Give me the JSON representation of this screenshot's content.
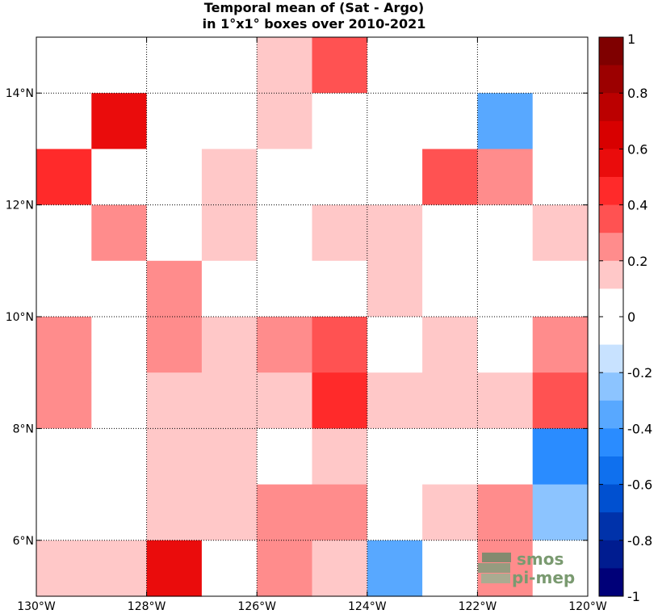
{
  "chart_data": {
    "type": "heatmap",
    "title_lines": [
      "Temporal mean of (Sat - Argo)",
      "in 1°x1° boxes over 2010-2021"
    ],
    "x_ticks": [
      {
        "value": -130,
        "label": "130°W"
      },
      {
        "value": -128,
        "label": "128°W"
      },
      {
        "value": -126,
        "label": "126°W"
      },
      {
        "value": -124,
        "label": "124°W"
      },
      {
        "value": -122,
        "label": "122°W"
      },
      {
        "value": -120,
        "label": "120°W"
      }
    ],
    "y_ticks": [
      {
        "value": 6,
        "label": "6°N"
      },
      {
        "value": 8,
        "label": "8°N"
      },
      {
        "value": 10,
        "label": "10°N"
      },
      {
        "value": 12,
        "label": "12°N"
      },
      {
        "value": 14,
        "label": "14°N"
      }
    ],
    "xlim": [
      -130,
      -120
    ],
    "ylim": [
      5,
      15
    ],
    "grid": true,
    "x_lon_west_edges": [
      -130,
      -129,
      -128,
      -127,
      -126,
      -125,
      -124,
      -123,
      -122,
      -121
    ],
    "y_lat_top_edges": [
      15,
      14,
      13,
      12,
      11,
      10,
      9,
      8,
      7,
      6
    ],
    "values": [
      [
        0,
        0,
        -0.1,
        0,
        0.15,
        0.35,
        -0.1,
        -0.1,
        0,
        0
      ],
      [
        0,
        0.55,
        0,
        0,
        0.15,
        0,
        0,
        0,
        -0.35,
        0
      ],
      [
        0.45,
        -0.1,
        -0.1,
        0.15,
        -0.1,
        0,
        0,
        0.35,
        0.25,
        0
      ],
      [
        0,
        0.25,
        0,
        0.15,
        0,
        0.15,
        0.15,
        0,
        0,
        0.15
      ],
      [
        0,
        0,
        0.25,
        0,
        0,
        0,
        0.15,
        0,
        0,
        0
      ],
      [
        0.25,
        0,
        0.25,
        0.15,
        0.25,
        0.35,
        0,
        0.15,
        0,
        0.25
      ],
      [
        0.25,
        0,
        0.15,
        0.15,
        0.15,
        0.45,
        0.15,
        0.15,
        0.15,
        0.35
      ],
      [
        0,
        0,
        0.15,
        0.15,
        0,
        0.15,
        0,
        0,
        0,
        -0.45
      ],
      [
        -0.1,
        -0.1,
        0.15,
        0.15,
        0.25,
        0.25,
        0,
        0.15,
        0.25,
        -0.25
      ],
      [
        0.15,
        0.15,
        0.55,
        0,
        0.25,
        0.15,
        -0.35,
        0,
        0.25,
        0
      ]
    ],
    "colorbar": {
      "min": -1,
      "max": 1,
      "ticks": [
        {
          "value": 1,
          "label": "1"
        },
        {
          "value": 0.8,
          "label": "0.8"
        },
        {
          "value": 0.6,
          "label": "0.6"
        },
        {
          "value": 0.4,
          "label": "0.4"
        },
        {
          "value": 0.2,
          "label": "0.2"
        },
        {
          "value": 0,
          "label": "0"
        },
        {
          "value": -0.2,
          "label": "-0.2"
        },
        {
          "value": -0.4,
          "label": "-0.4"
        },
        {
          "value": -0.6,
          "label": "-0.6"
        },
        {
          "value": -0.8,
          "label": "-0.8"
        },
        {
          "value": -1,
          "label": "-1"
        }
      ],
      "levels": [
        {
          "from": 0.9,
          "to": 1.0,
          "color": "#7f0000"
        },
        {
          "from": 0.8,
          "to": 0.9,
          "color": "#9c0000"
        },
        {
          "from": 0.7,
          "to": 0.8,
          "color": "#bb0000"
        },
        {
          "from": 0.6,
          "to": 0.7,
          "color": "#d80000"
        },
        {
          "from": 0.5,
          "to": 0.6,
          "color": "#ea0c0c"
        },
        {
          "from": 0.4,
          "to": 0.5,
          "color": "#ff2a2a"
        },
        {
          "from": 0.3,
          "to": 0.4,
          "color": "#ff5252"
        },
        {
          "from": 0.2,
          "to": 0.3,
          "color": "#ff8c8c"
        },
        {
          "from": 0.1,
          "to": 0.2,
          "color": "#ffc8c8"
        },
        {
          "from": -0.1,
          "to": 0.1,
          "color": "#ffffff"
        },
        {
          "from": -0.2,
          "to": -0.1,
          "color": "#c8e2ff"
        },
        {
          "from": -0.3,
          "to": -0.2,
          "color": "#8cc4ff"
        },
        {
          "from": -0.4,
          "to": -0.3,
          "color": "#58a8ff"
        },
        {
          "from": -0.5,
          "to": -0.4,
          "color": "#2a8cff"
        },
        {
          "from": -0.6,
          "to": -0.5,
          "color": "#0f70ee"
        },
        {
          "from": -0.7,
          "to": -0.6,
          "color": "#0050d0"
        },
        {
          "from": -0.8,
          "to": -0.7,
          "color": "#0032aa"
        },
        {
          "from": -0.9,
          "to": -0.8,
          "color": "#001c90"
        },
        {
          "from": -1.0,
          "to": -0.9,
          "color": "#000078"
        }
      ]
    }
  },
  "logo": {
    "line1": "smos",
    "line2": "pi-mep"
  }
}
